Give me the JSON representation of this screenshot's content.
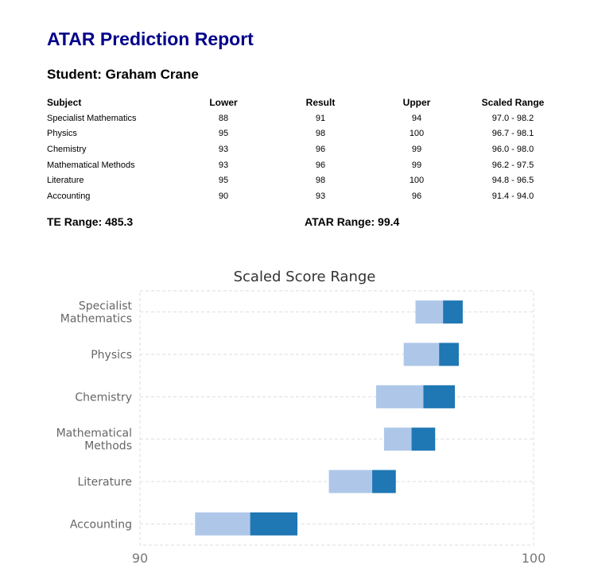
{
  "report": {
    "title": "ATAR Prediction Report",
    "student": "Student: Graham Crane",
    "te_range": "TE Range: 485.3",
    "atar_range": "ATAR Range: 99.4"
  },
  "table": {
    "headers": [
      "Subject",
      "Lower",
      "Result",
      "Upper",
      "Scaled Range"
    ],
    "rows": [
      [
        "Specialist Mathematics",
        "88",
        "91",
        "94",
        "97.0 - 98.2"
      ],
      [
        "Physics",
        "95",
        "98",
        "100",
        "96.7 - 98.1"
      ],
      [
        "Chemistry",
        "93",
        "96",
        "99",
        "96.0 - 98.0"
      ],
      [
        "Mathematical Methods",
        "93",
        "96",
        "99",
        "96.2 - 97.5"
      ],
      [
        "Literature",
        "95",
        "98",
        "100",
        "94.8 - 96.5"
      ],
      [
        "Accounting",
        "90",
        "93",
        "96",
        "91.4 - 94.0"
      ]
    ]
  },
  "chart_data": {
    "type": "bar",
    "orientation": "horizontal",
    "stacked": true,
    "title": "Scaled Score Range",
    "categories": [
      "Specialist\nMathematics",
      "Physics",
      "Chemistry",
      "Mathematical\nMethods",
      "Literature",
      "Accounting"
    ],
    "ranges": [
      {
        "low": 97.0,
        "mid": 97.7,
        "high": 98.2
      },
      {
        "low": 96.7,
        "mid": 97.6,
        "high": 98.1
      },
      {
        "low": 96.0,
        "mid": 97.2,
        "high": 98.0
      },
      {
        "low": 96.2,
        "mid": 96.9,
        "high": 97.5
      },
      {
        "low": 94.8,
        "mid": 95.9,
        "high": 96.5
      },
      {
        "low": 91.4,
        "mid": 92.8,
        "high": 94.0
      }
    ],
    "xlim": [
      90,
      100
    ],
    "xticks": [
      "90",
      "100"
    ],
    "grid": true,
    "colors": {
      "light": "#aec7e8",
      "dark": "#1f77b4",
      "grid": "#dddddd"
    }
  }
}
